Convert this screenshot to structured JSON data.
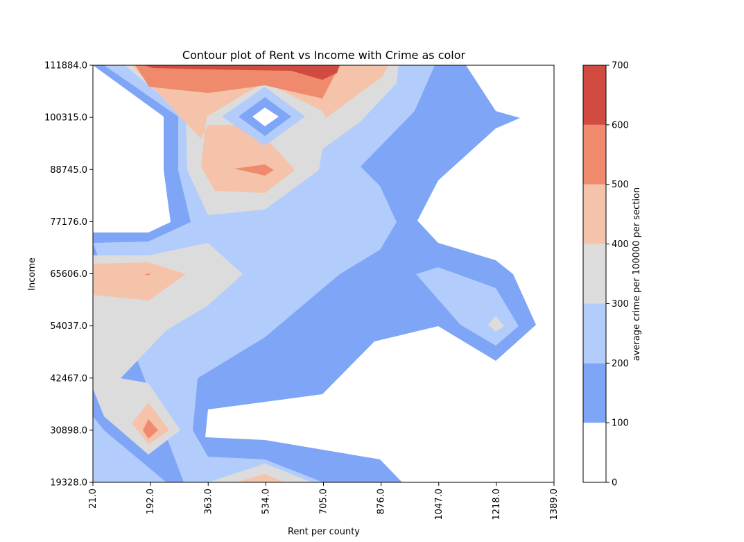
{
  "chart_data": {
    "type": "contour",
    "title": "Contour plot of Rent vs Income with Crime as color",
    "xlabel": "Rent per county",
    "ylabel": "Income",
    "xlim": [
      21.0,
      1389.0
    ],
    "ylim": [
      19328.0,
      111884.0
    ],
    "x_ticks": [
      "21.0",
      "192.0",
      "363.0",
      "534.0",
      "705.0",
      "876.0",
      "1047.0",
      "1218.0",
      "1389.0"
    ],
    "y_ticks": [
      "19328.0",
      "30898.0",
      "42467.0",
      "54037.0",
      "65606.0",
      "77176.0",
      "88745.0",
      "100315.0",
      "111884.0"
    ],
    "colorbar": {
      "label": "average crime per 100000 per section",
      "levels": [
        0,
        100,
        200,
        300,
        400,
        500,
        600,
        700
      ],
      "tick_labels": [
        "0",
        "100",
        "200",
        "300",
        "400",
        "500",
        "600",
        "700"
      ],
      "colors": [
        "#ffffff",
        "#7fa5f7",
        "#b2ccfb",
        "#dcdcdc",
        "#f5c3aa",
        "#ef8a6c",
        "#d24b40"
      ]
    },
    "grid": false
  }
}
